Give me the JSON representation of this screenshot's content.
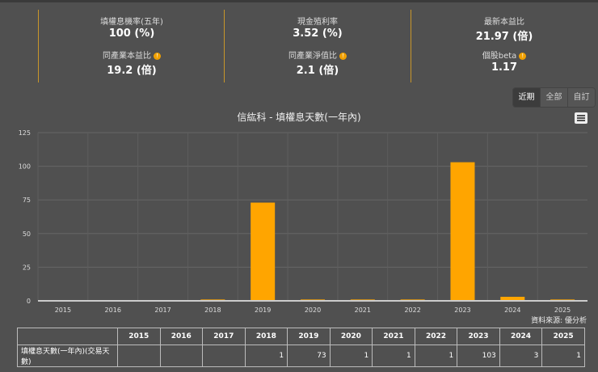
{
  "stats": [
    {
      "label": "填權息機率(五年)",
      "value": "100 (%)",
      "label2": "同產業本益比",
      "value2": "19.2 (倍)"
    },
    {
      "label": "現金殖利率",
      "value": "3.52 (%)",
      "label2": "同產業淨值比",
      "value2": "2.1 (倍)"
    },
    {
      "label": "最新本益比",
      "value": "21.97 (倍)",
      "label2": "個股beta",
      "value2": "1.17"
    }
  ],
  "range_buttons": [
    "近期",
    "全部",
    "自訂"
  ],
  "source": "資料來源: 優分析",
  "chart_data": {
    "type": "bar",
    "title": "信紘科 - 填權息天數(一年內)",
    "categories": [
      "2015",
      "2016",
      "2017",
      "2018",
      "2019",
      "2020",
      "2021",
      "2022",
      "2023",
      "2024",
      "2025"
    ],
    "values": [
      null,
      null,
      null,
      1,
      73,
      1,
      1,
      1,
      103,
      3,
      1
    ],
    "ylim": [
      0,
      125
    ],
    "yticks": [
      "0",
      "25",
      "50",
      "75",
      "100",
      "125"
    ],
    "grid": true,
    "color": "#ffa500"
  },
  "table": {
    "row_label": "填權息天數(一年內)(交易天數)"
  }
}
